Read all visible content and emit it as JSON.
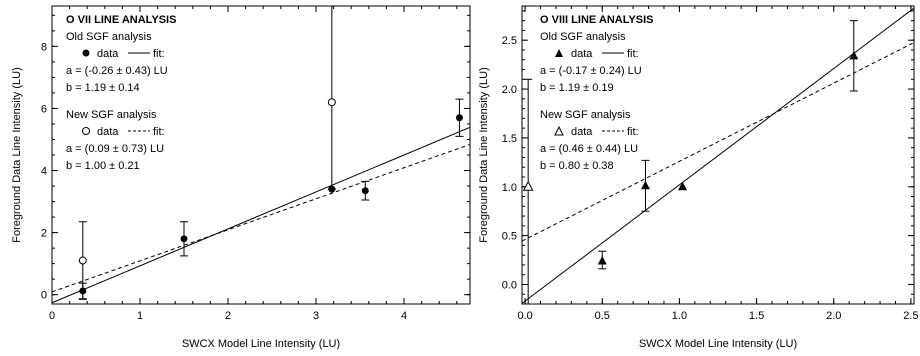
{
  "chart_data": [
    {
      "type": "scatter",
      "title": "O VII LINE ANALYSIS",
      "xlabel": "SWCX Model Line Intensity (LU)",
      "ylabel": "Foreground Data Line Intensity (LU)",
      "xlim": [
        0,
        4.75
      ],
      "ylim": [
        -0.3,
        9.3
      ],
      "xticks": [
        0,
        1,
        2,
        3,
        4
      ],
      "yticks": [
        0,
        2,
        4,
        6,
        8
      ],
      "x_minor_step": 0.2,
      "y_minor_step": 0.5,
      "legend_position": "top-left",
      "series": [
        {
          "name": "Old SGF analysis",
          "marker": "filled-circle",
          "points": [
            {
              "x": 0.35,
              "y": 0.12,
              "err_lo": 0.25,
              "err_hi": 0.25
            },
            {
              "x": 1.5,
              "y": 1.8,
              "err_lo": 0.55,
              "err_hi": 0.55
            },
            {
              "x": 3.18,
              "y": 3.4,
              "err_lo": 0,
              "err_hi": 0
            },
            {
              "x": 3.56,
              "y": 3.35,
              "err_lo": 0.3,
              "err_hi": 0.3
            },
            {
              "x": 4.63,
              "y": 5.7,
              "err_lo": 0.6,
              "err_hi": 0.6
            }
          ]
        },
        {
          "name": "New SGF analysis",
          "marker": "open-circle",
          "points": [
            {
              "x": 0.35,
              "y": 1.1,
              "err_lo": 1.25,
              "err_hi": 1.25
            },
            {
              "x": 3.18,
              "y": 6.2,
              "err_lo": 2.8,
              "err_hi": 3.2
            }
          ]
        }
      ],
      "fits": [
        {
          "style": "solid",
          "a": -0.26,
          "b": 1.19
        },
        {
          "style": "dashed",
          "a": 0.09,
          "b": 1.0
        }
      ],
      "legend": {
        "old_heading": "Old SGF analysis",
        "old_marker_label": "data",
        "old_line_label": "fit:",
        "old_a": "a = (-0.26 ± 0.43) LU",
        "old_b": "b = 1.19 ± 0.14",
        "new_heading": "New SGF analysis",
        "new_marker_label": "data",
        "new_line_label": "fit:",
        "new_a": "a = (0.09 ± 0.73) LU",
        "new_b": "b = 1.00 ± 0.21"
      }
    },
    {
      "type": "scatter",
      "title": "O VIII LINE ANALYSIS",
      "xlabel": "SWCX Model Line Intensity (LU)",
      "ylabel": "Foreground Data Line Intensity (LU)",
      "xlim": [
        -0.02,
        2.52
      ],
      "ylim": [
        -0.2,
        2.85
      ],
      "xticks": [
        0.0,
        0.5,
        1.0,
        1.5,
        2.0,
        2.5
      ],
      "xtick_labels": [
        "0.0",
        "0.5",
        "1.0",
        "1.5",
        "2.0",
        "2.5"
      ],
      "yticks": [
        0.0,
        0.5,
        1.0,
        1.5,
        2.0,
        2.5
      ],
      "ytick_labels": [
        "0.0",
        "0.5",
        "1.0",
        "1.5",
        "2.0",
        "2.5"
      ],
      "x_minor_step": 0.1,
      "y_minor_step": 0.1,
      "legend_position": "top-left",
      "series": [
        {
          "name": "Old SGF analysis",
          "marker": "filled-triangle",
          "points": [
            {
              "x": 0.5,
              "y": 0.24,
              "err_lo": 0.08,
              "err_hi": 0.1
            },
            {
              "x": 0.78,
              "y": 1.01,
              "err_lo": 0.26,
              "err_hi": 0.26
            },
            {
              "x": 1.02,
              "y": 1.0,
              "err_lo": 0,
              "err_hi": 0
            },
            {
              "x": 2.13,
              "y": 2.34,
              "err_lo": 0.36,
              "err_hi": 0.36
            }
          ]
        },
        {
          "name": "New SGF analysis",
          "marker": "open-triangle",
          "points": [
            {
              "x": 0.02,
              "y": 1.0,
              "err_lo": 1.2,
              "err_hi": 1.1
            }
          ]
        }
      ],
      "fits": [
        {
          "style": "solid",
          "a": -0.17,
          "b": 1.19
        },
        {
          "style": "dashed",
          "a": 0.46,
          "b": 0.8
        }
      ],
      "legend": {
        "old_heading": "Old SGF analysis",
        "old_marker_label": "data",
        "old_line_label": "fit:",
        "old_a": "a = (-0.17 ± 0.24) LU",
        "old_b": "b = 1.19 ± 0.19",
        "new_heading": "New SGF analysis",
        "new_marker_label": "data",
        "new_line_label": "fit:",
        "new_a": "a = (0.46 ± 0.44) LU",
        "new_b": "b = 0.80 ± 0.38"
      }
    }
  ]
}
